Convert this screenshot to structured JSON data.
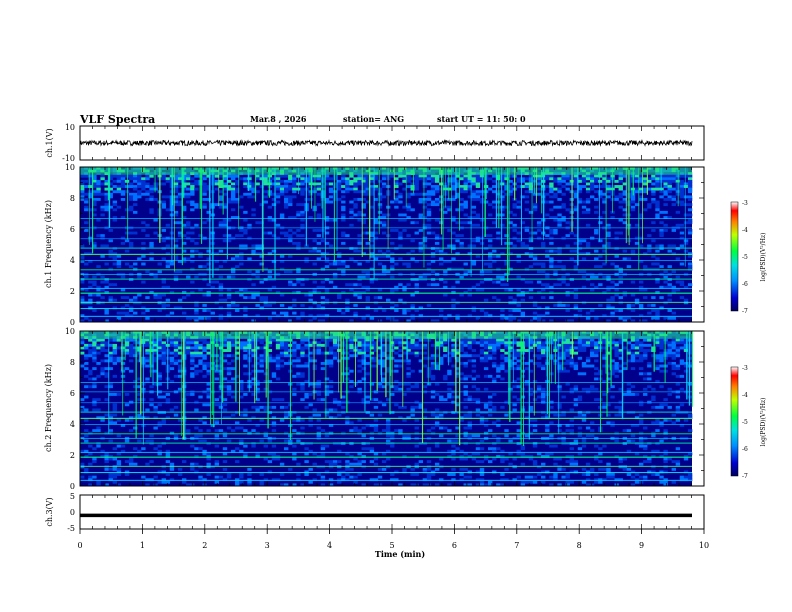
{
  "header": {
    "title": "VLF Spectra",
    "date": "Mar.8 , 2026",
    "station": "station= ANG",
    "start": "start UT =  11: 50: 0"
  },
  "colorbar": {
    "label": "log(PSD)(V²/Hz)",
    "ticks": [
      "-3",
      "-4",
      "-5",
      "-6",
      "-7"
    ]
  },
  "colors": {
    "trace": "#000000",
    "spectro_bg": "#00008b"
  },
  "chart_data": [
    {
      "type": "line",
      "name": "ch1-waveform",
      "ylabel": "ch.1(V)",
      "ylim": [
        -10,
        10
      ],
      "y_ticks": [
        "10",
        "-10"
      ],
      "x": [
        0,
        9.83
      ],
      "mean_value": 0,
      "noise_amplitude": 1.5
    },
    {
      "type": "heatmap",
      "name": "ch1-spectrogram",
      "ylabel": "ch.1 Frequency (kHz)",
      "ylim": [
        0,
        10
      ],
      "y_ticks": [
        "0",
        "2",
        "4",
        "6",
        "8",
        "10"
      ],
      "x_range_min": [
        0,
        9.83
      ],
      "zlim": [
        -7,
        -3
      ],
      "zlabel": "log(PSD)(V²/Hz)"
    },
    {
      "type": "heatmap",
      "name": "ch2-spectrogram",
      "ylabel": "ch.2 Frequency (kHz)",
      "ylim": [
        0,
        10
      ],
      "y_ticks": [
        "0",
        "2",
        "4",
        "6",
        "8",
        "10"
      ],
      "x_range_min": [
        0,
        9.83
      ],
      "zlim": [
        -7,
        -3
      ],
      "zlabel": "log(PSD)(V²/Hz)"
    },
    {
      "type": "line",
      "name": "ch3-waveform",
      "ylabel": "ch.3(V)",
      "ylim": [
        -5,
        5
      ],
      "y_ticks": [
        "5",
        "0",
        "-5"
      ],
      "x": [
        0,
        9.83
      ],
      "mean_value": -1
    }
  ],
  "x_axis": {
    "label": "Time (min)",
    "range": [
      0,
      10
    ],
    "ticks": [
      "0",
      "1",
      "2",
      "3",
      "4",
      "5",
      "6",
      "7",
      "8",
      "9",
      "10"
    ]
  }
}
